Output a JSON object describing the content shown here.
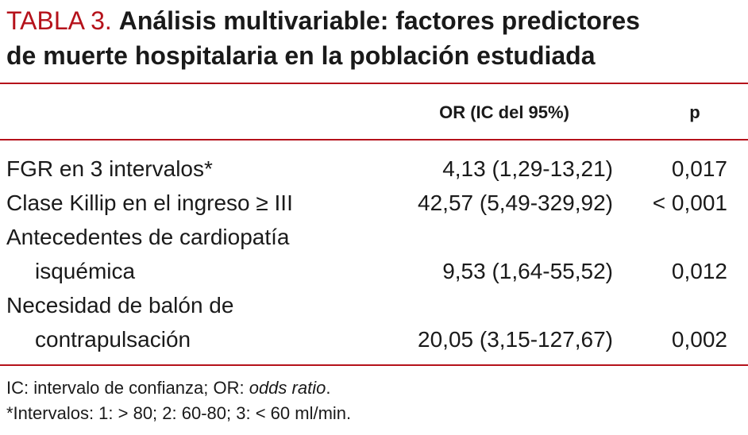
{
  "title": {
    "label": "TABLA 3.",
    "text_line1": "Análisis multivariable: factores predictores",
    "text_line2": "de muerte hospitalaria en la población estudiada"
  },
  "columns": {
    "or": "OR (IC del 95%)",
    "p": "p"
  },
  "rows": [
    {
      "name": "FGR en 3 intervalos*",
      "or": "4,13 (1,29-13,21)",
      "p": "0,017"
    },
    {
      "name": "Clase Killip en el ingreso ≥ III",
      "or": "42,57 (5,49-329,92)",
      "p": "< 0,001"
    },
    {
      "name_line1": "Antecedentes de cardiopatía",
      "name_line2": "isquémica",
      "or": "9,53 (1,64-55,52)",
      "p": "0,012"
    },
    {
      "name_line1": "Necesidad de balón de",
      "name_line2": "contrapulsación",
      "or": "20,05 (3,15-127,67)",
      "p": "0,002"
    }
  ],
  "footnotes": {
    "line1_prefix": "IC: intervalo de confianza; OR: ",
    "line1_italic": "odds ratio",
    "line1_suffix": ".",
    "line2": "*Intervalos: 1: > 80; 2: 60-80; 3: < 60 ml/min."
  },
  "colors": {
    "accent": "#b5121b",
    "text": "#1a1a1a"
  }
}
